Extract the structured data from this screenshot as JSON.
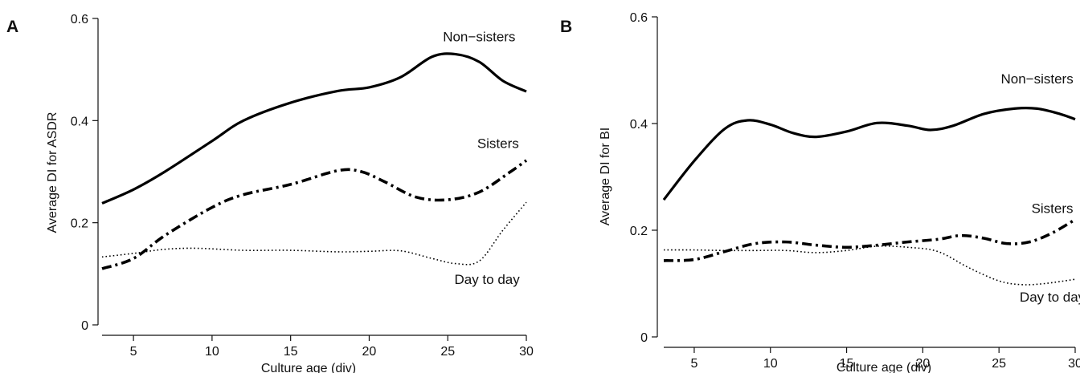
{
  "chart_data": [
    {
      "panel": "A",
      "type": "line",
      "xlabel": "Culture age (div)",
      "ylabel": "Average DI for ASDR",
      "xlim": [
        3,
        30
      ],
      "ylim": [
        0,
        0.6
      ],
      "xticks": [
        5,
        10,
        15,
        20,
        25,
        30
      ],
      "yticks": [
        0,
        0.2,
        0.4,
        0.6
      ],
      "ytick_labels": [
        "0",
        "0.2",
        "0.4",
        "0.6"
      ],
      "legend": "inline labels",
      "grid": false,
      "series": [
        {
          "name": "Non−sisters",
          "style": "solid",
          "label_pos": [
            27,
            0.555
          ],
          "x": [
            3,
            5,
            7,
            10,
            12,
            15,
            18,
            20,
            22,
            24,
            25.5,
            27,
            28.5,
            30
          ],
          "y": [
            0.238,
            0.265,
            0.3,
            0.36,
            0.4,
            0.435,
            0.458,
            0.465,
            0.485,
            0.525,
            0.53,
            0.515,
            0.478,
            0.457
          ]
        },
        {
          "name": "Sisters",
          "style": "dashdot",
          "label_pos": [
            28.2,
            0.346
          ],
          "x": [
            3,
            5,
            7,
            10,
            12,
            15,
            18,
            19.5,
            21,
            23,
            25,
            27,
            29,
            30
          ],
          "y": [
            0.11,
            0.13,
            0.175,
            0.23,
            0.255,
            0.275,
            0.302,
            0.3,
            0.28,
            0.25,
            0.245,
            0.26,
            0.3,
            0.322
          ]
        },
        {
          "name": "Day to day",
          "style": "dotted",
          "label_pos": [
            27.5,
            0.08
          ],
          "x": [
            3,
            5,
            7,
            9,
            12,
            15,
            18,
            20,
            22,
            24,
            25.5,
            27,
            28.5,
            30
          ],
          "y": [
            0.133,
            0.14,
            0.148,
            0.15,
            0.146,
            0.146,
            0.143,
            0.144,
            0.145,
            0.13,
            0.12,
            0.125,
            0.185,
            0.24
          ]
        }
      ]
    },
    {
      "panel": "B",
      "type": "line",
      "xlabel": "Culture age (div)",
      "ylabel": "Average DI for BI",
      "xlim": [
        3,
        30
      ],
      "ylim": [
        0,
        0.6
      ],
      "xticks": [
        5,
        10,
        15,
        20,
        25,
        30
      ],
      "yticks": [
        0,
        0.2,
        0.4,
        0.6
      ],
      "ytick_labels": [
        "0",
        "0.2",
        "0.4",
        "0.6"
      ],
      "legend": "inline labels",
      "grid": false,
      "series": [
        {
          "name": "Non−sisters",
          "style": "solid",
          "label_pos": [
            27.5,
            0.475
          ],
          "x": [
            3,
            5,
            7,
            8.5,
            10,
            11.5,
            13,
            15,
            17,
            19,
            20.5,
            22,
            24,
            26,
            27.5,
            29,
            30
          ],
          "y": [
            0.257,
            0.33,
            0.39,
            0.406,
            0.398,
            0.382,
            0.375,
            0.385,
            0.401,
            0.396,
            0.388,
            0.396,
            0.418,
            0.428,
            0.428,
            0.418,
            0.408
          ]
        },
        {
          "name": "Sisters",
          "style": "dashdot",
          "label_pos": [
            28.5,
            0.232
          ],
          "x": [
            3,
            5,
            7,
            9,
            11,
            13,
            15,
            17,
            19,
            21,
            22.5,
            24,
            25.5,
            27,
            28.5,
            30
          ],
          "y": [
            0.143,
            0.145,
            0.16,
            0.175,
            0.178,
            0.172,
            0.168,
            0.172,
            0.178,
            0.183,
            0.19,
            0.185,
            0.175,
            0.178,
            0.195,
            0.22
          ]
        },
        {
          "name": "Day to day",
          "style": "dotted",
          "label_pos": [
            28.5,
            0.066
          ],
          "x": [
            3,
            5,
            7,
            9,
            11,
            13,
            15,
            17,
            19,
            21,
            23,
            25,
            26.5,
            28,
            30
          ],
          "y": [
            0.163,
            0.163,
            0.162,
            0.162,
            0.162,
            0.158,
            0.162,
            0.17,
            0.168,
            0.16,
            0.13,
            0.105,
            0.098,
            0.1,
            0.108
          ]
        }
      ]
    }
  ]
}
